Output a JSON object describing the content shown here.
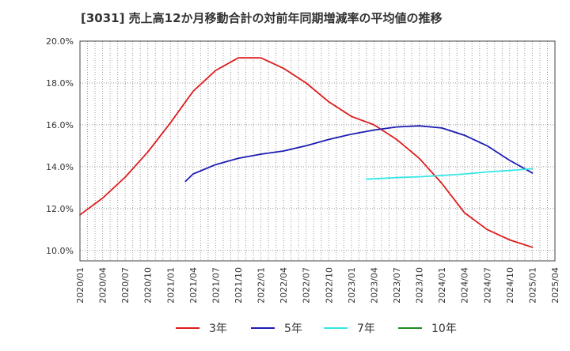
{
  "chart_data": {
    "type": "line",
    "title": "[3031]  売上高12か月移動合計の対前年同期増減率の平均値の推移",
    "xlabel": "",
    "ylabel": "",
    "ylim": [
      9.5,
      20.0
    ],
    "y_ticks": [
      10.0,
      12.0,
      14.0,
      16.0,
      18.0,
      20.0
    ],
    "y_tick_labels": [
      "10.0%",
      "12.0%",
      "14.0%",
      "16.0%",
      "18.0%",
      "20.0%"
    ],
    "x_ticks": [
      "2020/01",
      "2020/04",
      "2020/07",
      "2020/10",
      "2021/01",
      "2021/04",
      "2021/07",
      "2021/10",
      "2022/01",
      "2022/04",
      "2022/07",
      "2022/10",
      "2023/01",
      "2023/04",
      "2023/07",
      "2023/10",
      "2024/01",
      "2024/04",
      "2024/07",
      "2024/10",
      "2025/01",
      "2025/04"
    ],
    "xlim": [
      "2020/01",
      "2025/04"
    ],
    "grid": true,
    "legend_position": "bottom",
    "series": [
      {
        "name": "3年",
        "color": "#dd1c1c",
        "points": [
          [
            "2020/01",
            11.7
          ],
          [
            "2020/04",
            12.5
          ],
          [
            "2020/07",
            13.5
          ],
          [
            "2020/10",
            14.7
          ],
          [
            "2021/01",
            16.1
          ],
          [
            "2021/04",
            17.6
          ],
          [
            "2021/07",
            18.6
          ],
          [
            "2021/10",
            19.2
          ],
          [
            "2022/01",
            19.2
          ],
          [
            "2022/04",
            18.7
          ],
          [
            "2022/07",
            18.0
          ],
          [
            "2022/10",
            17.1
          ],
          [
            "2023/01",
            16.4
          ],
          [
            "2023/04",
            16.0
          ],
          [
            "2023/07",
            15.3
          ],
          [
            "2023/10",
            14.4
          ],
          [
            "2024/01",
            13.2
          ],
          [
            "2024/04",
            11.8
          ],
          [
            "2024/07",
            11.0
          ],
          [
            "2024/10",
            10.5
          ],
          [
            "2025/01",
            10.15
          ]
        ]
      },
      {
        "name": "5年",
        "color": "#1c1cb4",
        "points": [
          [
            "2021/03",
            13.3
          ],
          [
            "2021/04",
            13.65
          ],
          [
            "2021/07",
            14.1
          ],
          [
            "2021/10",
            14.4
          ],
          [
            "2022/01",
            14.6
          ],
          [
            "2022/04",
            14.75
          ],
          [
            "2022/07",
            15.0
          ],
          [
            "2022/10",
            15.3
          ],
          [
            "2023/01",
            15.55
          ],
          [
            "2023/04",
            15.75
          ],
          [
            "2023/07",
            15.9
          ],
          [
            "2023/10",
            15.95
          ],
          [
            "2024/01",
            15.85
          ],
          [
            "2024/04",
            15.5
          ],
          [
            "2024/07",
            15.0
          ],
          [
            "2024/10",
            14.3
          ],
          [
            "2025/01",
            13.7
          ]
        ]
      },
      {
        "name": "7年",
        "color": "#33e5e5",
        "points": [
          [
            "2023/03",
            13.4
          ],
          [
            "2023/04",
            13.42
          ],
          [
            "2023/07",
            13.48
          ],
          [
            "2023/10",
            13.52
          ],
          [
            "2024/01",
            13.58
          ],
          [
            "2024/04",
            13.65
          ],
          [
            "2024/07",
            13.75
          ],
          [
            "2024/10",
            13.82
          ],
          [
            "2025/01",
            13.9
          ]
        ]
      },
      {
        "name": "10年",
        "color": "#228b22",
        "points": []
      }
    ]
  }
}
